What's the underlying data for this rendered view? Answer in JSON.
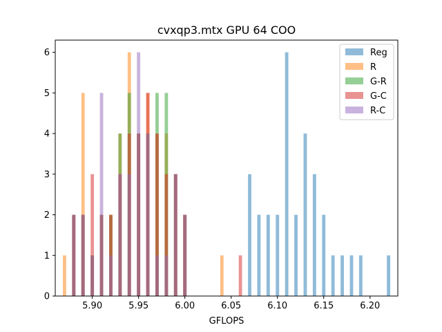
{
  "chart_data": {
    "type": "bar",
    "title": "cvxqp3.mtx GPU 64 COO",
    "xlabel": "GFLOPS",
    "ylabel": "",
    "xlim": [
      5.86,
      6.23
    ],
    "ylim": [
      0,
      6.3
    ],
    "xticks": [
      5.9,
      5.95,
      6.0,
      6.05,
      6.1,
      6.15,
      6.2
    ],
    "xtick_labels": [
      "5.90",
      "5.95",
      "6.00",
      "6.05",
      "6.10",
      "6.15",
      "6.20"
    ],
    "yticks": [
      0,
      1,
      2,
      3,
      4,
      5,
      6
    ],
    "ytick_labels": [
      "0",
      "1",
      "2",
      "3",
      "4",
      "5",
      "6"
    ],
    "grid": false,
    "legend_position": "top-right",
    "bar_width": 0.0018,
    "series": [
      {
        "name": "Reg",
        "color": "#1f77b4",
        "x": [
          6.07,
          6.08,
          6.09,
          6.1,
          6.11,
          6.12,
          6.13,
          6.14,
          6.15,
          6.16,
          6.17,
          6.18,
          6.19,
          6.22
        ],
        "values": [
          3,
          2,
          2,
          2,
          6,
          2,
          4,
          3,
          2,
          1,
          1,
          1,
          1,
          1
        ]
      },
      {
        "name": "R",
        "color": "#ff7f0e",
        "x": [
          5.87,
          5.88,
          5.89,
          5.9,
          5.91,
          5.92,
          5.93,
          5.94,
          5.95,
          5.96,
          5.97,
          5.98,
          5.99,
          6.0,
          6.04
        ],
        "values": [
          1,
          2,
          5,
          1,
          2,
          2,
          4,
          6,
          4,
          5,
          4,
          4,
          3,
          2,
          1
        ]
      },
      {
        "name": "G-R",
        "color": "#2ca02c",
        "x": [
          5.88,
          5.89,
          5.9,
          5.91,
          5.92,
          5.93,
          5.94,
          5.95,
          5.96,
          5.97,
          5.98,
          5.99,
          6.0
        ],
        "values": [
          2,
          2,
          1,
          2,
          2,
          4,
          5,
          4,
          4,
          5,
          5,
          3,
          2
        ]
      },
      {
        "name": "G-C",
        "color": "#d62728",
        "x": [
          5.88,
          5.89,
          5.9,
          5.91,
          5.92,
          5.93,
          5.94,
          5.95,
          5.96,
          5.97,
          5.98,
          5.99,
          6.0,
          6.06
        ],
        "values": [
          2,
          2,
          3,
          2,
          2,
          3,
          4,
          4,
          5,
          4,
          3,
          3,
          2,
          1
        ]
      },
      {
        "name": "R-C",
        "color": "#9467bd",
        "x": [
          5.88,
          5.89,
          5.9,
          5.91,
          5.92,
          5.93,
          5.94,
          5.95,
          5.96,
          5.97,
          5.98,
          5.99,
          6.0
        ],
        "values": [
          2,
          2,
          1,
          5,
          1,
          3,
          3,
          6,
          4,
          1,
          1,
          3,
          2
        ]
      }
    ]
  }
}
